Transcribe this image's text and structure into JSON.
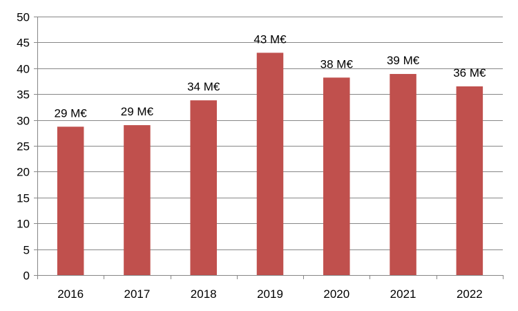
{
  "chart_data": {
    "type": "bar",
    "categories": [
      "2016",
      "2017",
      "2018",
      "2019",
      "2020",
      "2021",
      "2022"
    ],
    "values": [
      28.7,
      29.0,
      33.8,
      43.0,
      38.2,
      38.9,
      36.5
    ],
    "data_labels": [
      "29 M€",
      "29 M€",
      "34 M€",
      "43 M€",
      "38 M€",
      "39 M€",
      "36 M€"
    ],
    "y_ticks": [
      0,
      5,
      10,
      15,
      20,
      25,
      30,
      35,
      40,
      45,
      50
    ],
    "ylim": [
      0,
      50
    ],
    "title": "",
    "xlabel": "",
    "ylabel": "",
    "grid": true,
    "legend": "none",
    "colors": {
      "bar": "#c0504d",
      "grid": "#868686",
      "axis": "#868686"
    }
  }
}
